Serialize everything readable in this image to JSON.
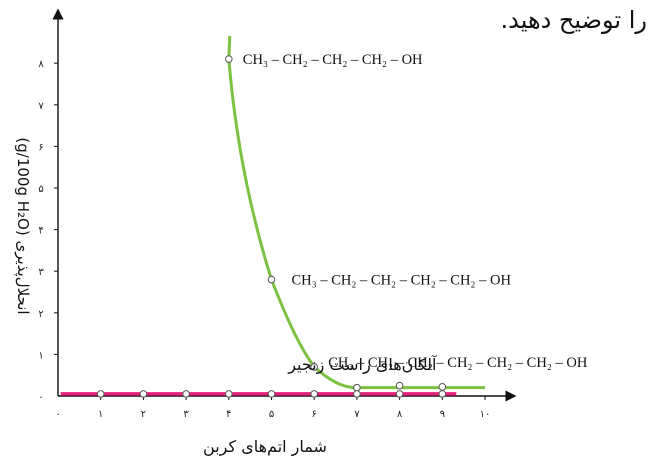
{
  "instruction": "را توضیح دهید.",
  "chart_data": {
    "type": "line",
    "xlabel": "شمار اتم‌های کربن",
    "ylabel": "انحلال‌پذیری (g/100g H₂O)",
    "xlim": [
      0,
      10
    ],
    "ylim": [
      0,
      8.5
    ],
    "x_ticks": [
      "۰",
      "۱",
      "۲",
      "۳",
      "۴",
      "۵",
      "۶",
      "۷",
      "۸",
      "۹",
      "۱۰"
    ],
    "y_ticks": [
      "۰",
      "۱",
      "۲",
      "۳",
      "۴",
      "۵",
      "۶",
      "۷",
      "۸"
    ],
    "grid": false,
    "series": [
      {
        "name": "",
        "color": "#7cc242",
        "points": [
          {
            "x": 4,
            "y": 8.1
          },
          {
            "x": 5,
            "y": 2.8
          },
          {
            "x": 6,
            "y": 0.7
          },
          {
            "x": 7,
            "y": 0.2
          },
          {
            "x": 8,
            "y": 0.25
          },
          {
            "x": 9,
            "y": 0.22
          }
        ]
      },
      {
        "name": "آلکان‌های راست زنجیر",
        "color": "#e2217c",
        "points": [
          {
            "x": 1,
            "y": 0.05
          },
          {
            "x": 2,
            "y": 0.05
          },
          {
            "x": 3,
            "y": 0.05
          },
          {
            "x": 4,
            "y": 0.05
          },
          {
            "x": 5,
            "y": 0.05
          },
          {
            "x": 6,
            "y": 0.05
          },
          {
            "x": 7,
            "y": 0.05
          },
          {
            "x": 8,
            "y": 0.05
          },
          {
            "x": 9,
            "y": 0.05
          }
        ]
      }
    ],
    "annotations": [
      {
        "text": "CH₃ – CH₂ – CH₂ – CH₂ – OH",
        "x": 4,
        "y": 8.1
      },
      {
        "text": "CH₃ – CH₂ – CH₂ – CH₂ – CH₂ – OH",
        "x": 5,
        "y": 2.8
      },
      {
        "text": "CH₃ – CH₂ – CH₂ – CH₂ – CH₂ – CH₂ – OH",
        "x": 6,
        "y": 0.7
      }
    ]
  }
}
